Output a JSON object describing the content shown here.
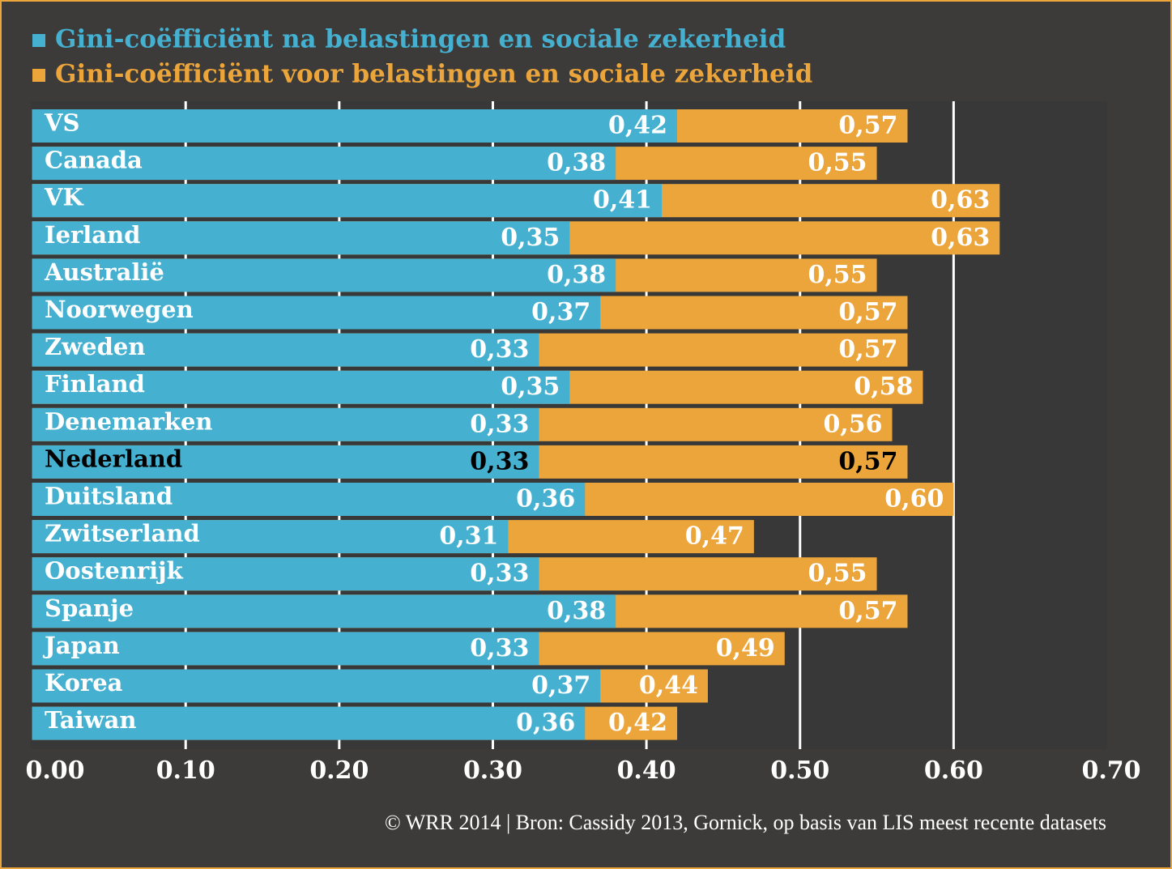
{
  "chart_data": {
    "type": "overlap-bar",
    "categories": [
      "VS",
      "Canada",
      "VK",
      "Ierland",
      "Australië",
      "Noorwegen",
      "Zweden",
      "Finland",
      "Denemarken",
      "Nederland",
      "Duitsland",
      "Zwitserland",
      "Oostenrijk",
      "Spanje",
      "Japan",
      "Korea",
      "Taiwan"
    ],
    "series": [
      {
        "name": "Gini-coëfficiënt voor belastingen en sociale zekerheid",
        "color": "#eba53a",
        "values": [
          0.57,
          0.55,
          0.63,
          0.63,
          0.55,
          0.57,
          0.57,
          0.58,
          0.56,
          0.57,
          0.6,
          0.47,
          0.55,
          0.57,
          0.49,
          0.44,
          0.42
        ],
        "value_labels": [
          "0,57",
          "0,55",
          "0,63",
          "0,63",
          "0,55",
          "0,57",
          "0,57",
          "0,58",
          "0,56",
          "0,57",
          "0,60",
          "0,47",
          "0,55",
          "0,57",
          "0,49",
          "0,44",
          "0,42"
        ]
      },
      {
        "name": "Gini-coëfficiënt na belastingen en sociale zekerheid",
        "color": "#45b0d0",
        "values": [
          0.42,
          0.38,
          0.41,
          0.35,
          0.38,
          0.37,
          0.33,
          0.35,
          0.33,
          0.33,
          0.36,
          0.31,
          0.33,
          0.38,
          0.33,
          0.37,
          0.36
        ],
        "value_labels": [
          "0,42",
          "0,38",
          "0,41",
          "0,35",
          "0,38",
          "0,37",
          "0,33",
          "0,35",
          "0,33",
          "0,33",
          "0,36",
          "0,31",
          "0,33",
          "0,38",
          "0,33",
          "0,37",
          "0,36"
        ]
      }
    ],
    "xlim": [
      0,
      0.7
    ],
    "xticks": [
      {
        "value": 0,
        "label": "0.00"
      },
      {
        "value": 0.1,
        "label": "0.10"
      },
      {
        "value": 0.2,
        "label": "0.20"
      },
      {
        "value": 0.3,
        "label": "0.30"
      },
      {
        "value": 0.4,
        "label": "0.40"
      },
      {
        "value": 0.5,
        "label": "0.50"
      },
      {
        "value": 0.6,
        "label": "0.60"
      },
      {
        "value": 0.7,
        "label": "0.70"
      }
    ],
    "grid": true,
    "highlight": "Nederland",
    "source": "© WRR 2014 | Bron: Cassidy 2013, Gornick, op basis van LIS meest recente datasets"
  }
}
